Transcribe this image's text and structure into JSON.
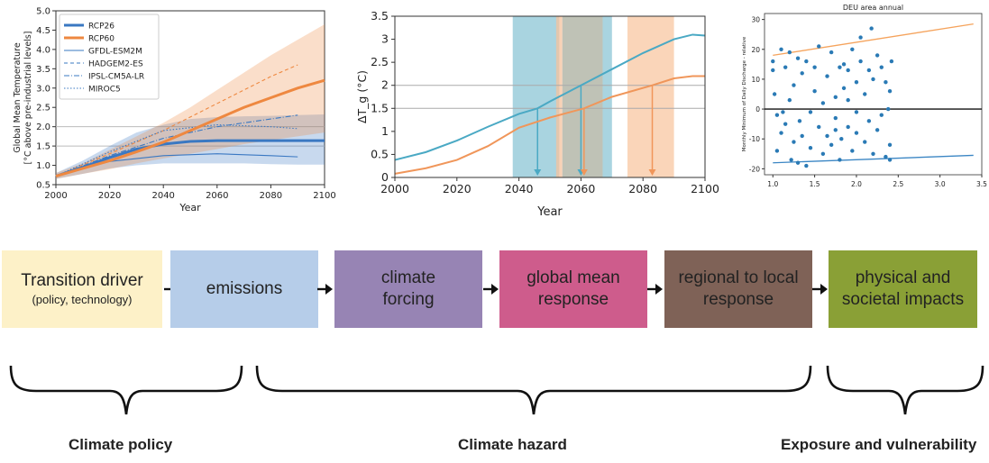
{
  "chart_data": [
    {
      "type": "line",
      "title": "",
      "xlabel": "Year",
      "ylabel": "Global Mean Temperature\n[°C above pre-industrial levels]",
      "xlim": [
        2000,
        2100
      ],
      "ylim": [
        0.5,
        5.0
      ],
      "x_ticks": [
        "2000",
        "2020",
        "2040",
        "2060",
        "2080",
        "2100"
      ],
      "y_ticks": [
        "0.5",
        "1.0",
        "1.5",
        "2.0",
        "2.5",
        "3.0",
        "3.5",
        "4.0",
        "4.5",
        "5.0"
      ],
      "reference_lines": [
        1.5,
        2.0
      ],
      "legend": [
        "RCP26",
        "RCP60",
        "GFDL-ESM2M",
        "HADGEM2-ES",
        "IPSL-CM5A-LR",
        "MIROC5"
      ],
      "legend_position": "top-left",
      "colors": {
        "rcp26": "#3a78c2",
        "rcp60": "#ee8840"
      },
      "series": [
        {
          "name": "RCP26",
          "x": [
            2000,
            2010,
            2020,
            2030,
            2040,
            2050,
            2060,
            2070,
            2080,
            2090,
            2100
          ],
          "y": [
            0.72,
            0.95,
            1.2,
            1.42,
            1.55,
            1.62,
            1.64,
            1.64,
            1.64,
            1.64,
            1.64
          ],
          "lower": [
            0.65,
            0.78,
            0.92,
            1.0,
            1.05,
            1.05,
            1.05,
            1.05,
            1.03,
            1.02,
            1.02
          ],
          "upper": [
            0.8,
            1.12,
            1.5,
            1.85,
            2.05,
            2.2,
            2.25,
            2.27,
            2.28,
            2.3,
            2.32
          ]
        },
        {
          "name": "RCP60",
          "x": [
            2000,
            2010,
            2020,
            2030,
            2040,
            2050,
            2060,
            2070,
            2080,
            2090,
            2100
          ],
          "y": [
            0.72,
            0.92,
            1.12,
            1.35,
            1.6,
            1.9,
            2.2,
            2.5,
            2.75,
            3.0,
            3.2
          ],
          "lower": [
            0.65,
            0.78,
            0.9,
            1.05,
            1.18,
            1.3,
            1.42,
            1.55,
            1.65,
            1.75,
            1.85
          ],
          "upper": [
            0.8,
            1.05,
            1.4,
            1.75,
            2.1,
            2.5,
            2.95,
            3.4,
            3.85,
            4.25,
            4.65
          ]
        },
        {
          "name": "GFDL-ESM2M",
          "x": [
            2000,
            2020,
            2040,
            2060,
            2080,
            2090
          ],
          "y": [
            0.72,
            1.1,
            1.25,
            1.3,
            1.25,
            1.22
          ]
        },
        {
          "name": "HADGEM2-ES",
          "x": [
            2000,
            2020,
            2040,
            2060,
            2080,
            2090
          ],
          "y": [
            0.72,
            1.3,
            1.9,
            2.6,
            3.3,
            3.6
          ]
        },
        {
          "name": "IPSL-CM5A-LR",
          "x": [
            2000,
            2020,
            2040,
            2060,
            2080,
            2090
          ],
          "y": [
            0.72,
            1.25,
            1.7,
            2.0,
            2.2,
            2.3
          ]
        },
        {
          "name": "MIROC5",
          "x": [
            2000,
            2020,
            2040,
            2060,
            2080,
            2090
          ],
          "y": [
            0.72,
            1.35,
            1.9,
            2.05,
            2.0,
            1.95
          ]
        }
      ]
    },
    {
      "type": "line",
      "title": "",
      "xlabel": "Year",
      "ylabel": "ΔT_g (°C)",
      "xlim": [
        2000,
        2100
      ],
      "ylim": [
        0,
        3.5
      ],
      "x_ticks": [
        "2000",
        "2020",
        "2040",
        "2060",
        "2080",
        "2100"
      ],
      "y_ticks": [
        "0",
        "0.5",
        "1",
        "1.5",
        "2",
        "2.5",
        "3",
        "3.5"
      ],
      "reference_lines": [
        1.5,
        2.0
      ],
      "shaded_windows": [
        {
          "color": "#8cc5d6",
          "x": [
            2038,
            2053
          ]
        },
        {
          "color": "#f5c39d",
          "x": [
            2052,
            2054
          ]
        },
        {
          "color": "#a9ad9d",
          "x": [
            2054,
            2067
          ]
        },
        {
          "color": "#8cc5d6",
          "x": [
            2067,
            2070
          ]
        },
        {
          "color": "#f8c7a2",
          "x": [
            2075,
            2090
          ]
        }
      ],
      "crossing_arrows": [
        {
          "color": "#4aa9c4",
          "x": 2046,
          "from_y": 1.5
        },
        {
          "color": "#4aa9c4",
          "x": 2060,
          "from_y": 2.0
        },
        {
          "color": "#f0965a",
          "x": 2061,
          "from_y": 1.5
        },
        {
          "color": "#f0965a",
          "x": 2083,
          "from_y": 2.0
        }
      ],
      "series": [
        {
          "name": "",
          "color": "#4aa9c4",
          "x": [
            2000,
            2010,
            2020,
            2030,
            2040,
            2046,
            2050,
            2060,
            2070,
            2080,
            2090,
            2096,
            2100
          ],
          "y": [
            0.38,
            0.55,
            0.8,
            1.1,
            1.38,
            1.5,
            1.65,
            2.0,
            2.35,
            2.7,
            3.0,
            3.1,
            3.08
          ]
        },
        {
          "name": "",
          "color": "#f0965a",
          "x": [
            2000,
            2010,
            2020,
            2030,
            2040,
            2050,
            2061,
            2070,
            2083,
            2090,
            2096,
            2100
          ],
          "y": [
            0.08,
            0.2,
            0.38,
            0.68,
            1.08,
            1.3,
            1.5,
            1.75,
            2.0,
            2.15,
            2.2,
            2.2
          ]
        }
      ]
    },
    {
      "type": "scatter",
      "title": "DEU area annual",
      "xlabel": "",
      "ylabel": "Monthly Minimum of Daily Discharge - relative",
      "xlim": [
        0.9,
        3.5
      ],
      "ylim": [
        -22,
        32
      ],
      "x_ticks": [
        "1.0",
        "1.5",
        "2.0",
        "2.5",
        "3.0",
        "3.5"
      ],
      "y_ticks": [
        "-20",
        "-10",
        "0",
        "10",
        "20",
        "30"
      ],
      "zero_line": 0,
      "trend_lines": [
        {
          "color": "#f5a35c",
          "x": [
            1.0,
            3.4
          ],
          "y": [
            18,
            28.5
          ]
        },
        {
          "color": "#3b86c4",
          "x": [
            1.0,
            3.4
          ],
          "y": [
            -18,
            -15.5
          ]
        }
      ],
      "points": [
        [
          1.0,
          16
        ],
        [
          1.0,
          13
        ],
        [
          1.02,
          5
        ],
        [
          1.05,
          -2
        ],
        [
          1.05,
          -14
        ],
        [
          1.1,
          20
        ],
        [
          1.1,
          -8
        ],
        [
          1.12,
          -1
        ],
        [
          1.15,
          14
        ],
        [
          1.15,
          -5
        ],
        [
          1.2,
          19
        ],
        [
          1.2,
          3
        ],
        [
          1.22,
          -17
        ],
        [
          1.25,
          8
        ],
        [
          1.25,
          -11
        ],
        [
          1.3,
          17
        ],
        [
          1.3,
          -18
        ],
        [
          1.32,
          -4
        ],
        [
          1.35,
          12
        ],
        [
          1.35,
          -9
        ],
        [
          1.4,
          -19
        ],
        [
          1.4,
          16
        ],
        [
          1.45,
          -1
        ],
        [
          1.45,
          -13
        ],
        [
          1.5,
          14
        ],
        [
          1.5,
          6
        ],
        [
          1.55,
          21
        ],
        [
          1.55,
          -6
        ],
        [
          1.6,
          -15
        ],
        [
          1.6,
          2
        ],
        [
          1.65,
          11
        ],
        [
          1.65,
          -9
        ],
        [
          1.7,
          19
        ],
        [
          1.7,
          -12
        ],
        [
          1.75,
          4
        ],
        [
          1.75,
          -3
        ],
        [
          1.8,
          14
        ],
        [
          1.8,
          -17
        ],
        [
          1.82,
          -10
        ],
        [
          1.85,
          7
        ],
        [
          1.85,
          15
        ],
        [
          1.9,
          -6
        ],
        [
          1.9,
          13
        ],
        [
          1.95,
          20
        ],
        [
          1.95,
          -14
        ],
        [
          2.0,
          9
        ],
        [
          2.0,
          -1
        ],
        [
          2.0,
          -8
        ],
        [
          2.05,
          24
        ],
        [
          2.05,
          16
        ],
        [
          2.1,
          -11
        ],
        [
          2.1,
          5
        ],
        [
          2.15,
          13
        ],
        [
          2.15,
          -4
        ],
        [
          2.18,
          27
        ],
        [
          2.2,
          -15
        ],
        [
          2.2,
          10
        ],
        [
          2.25,
          18
        ],
        [
          2.25,
          -7
        ],
        [
          2.3,
          14
        ],
        [
          2.3,
          -2
        ],
        [
          2.35,
          9
        ],
        [
          2.35,
          -16
        ],
        [
          2.4,
          6
        ],
        [
          2.4,
          -12
        ],
        [
          2.42,
          16
        ],
        [
          2.4,
          -17
        ],
        [
          2.38,
          0
        ],
        [
          1.75,
          -7
        ],
        [
          1.9,
          3
        ]
      ]
    }
  ],
  "flow": {
    "boxes": [
      {
        "label": "Transition driver",
        "sublabel": "(policy, technology)",
        "color": "#fdf1c8"
      },
      {
        "label": "emissions",
        "sublabel": "",
        "color": "#b6cde9"
      },
      {
        "label": "climate forcing",
        "sublabel": "",
        "color": "#9784b4"
      },
      {
        "label": "global mean response",
        "sublabel": "",
        "color": "#ce5c8c"
      },
      {
        "label": "regional to local response",
        "sublabel": "",
        "color": "#7f6257"
      },
      {
        "label": "physical and societal impacts",
        "sublabel": "",
        "color": "#8aa036"
      }
    ],
    "groups": [
      {
        "label": "Climate policy"
      },
      {
        "label": "Climate hazard"
      },
      {
        "label": "Exposure and vulnerability"
      }
    ]
  }
}
